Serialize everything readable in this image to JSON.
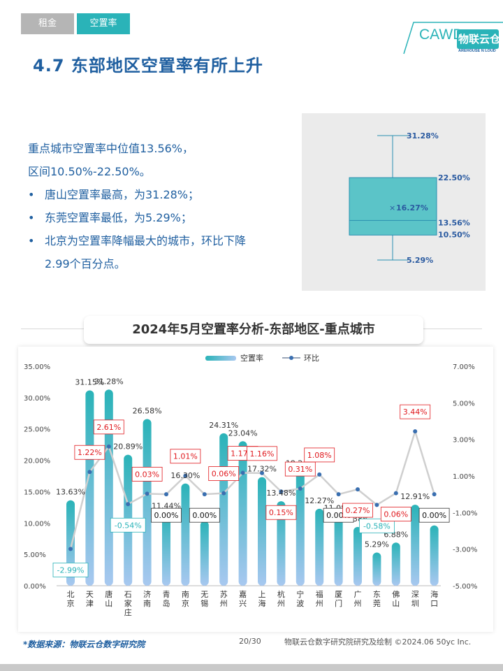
{
  "tabs": [
    "租金",
    "空置率"
  ],
  "logo": {
    "text": "CAWD",
    "brand": "物联云仓",
    "sub": "AREHOUSE N LOUD"
  },
  "page_title": "4.7 东部地区空置率有所上升",
  "summary": {
    "line1": "重点城市空置率中位值13.56%，",
    "line2": "区间10.50%-22.50%。",
    "bullets": [
      "唐山空置率最高，为31.28%；",
      "东莞空置率最低，为5.29%；",
      "北京为空置率降幅最大的城市，环比下降"
    ],
    "bullet3_cont": "2.99个百分点。"
  },
  "boxplot": {
    "max": 31.28,
    "q3": 22.5,
    "mean": 16.27,
    "median": 13.56,
    "q1": 10.5,
    "min": 5.29,
    "labels": {
      "max": "31.28%",
      "q3": "22.50%",
      "mean": "16.27%",
      "median": "13.56%",
      "q1": "10.50%",
      "min": "5.29%"
    }
  },
  "chart_title": "2024年5月空置率分析-东部地区-重点城市",
  "colors": {
    "teal": "#2ab3b8",
    "bar_light": "#a8c8f0",
    "line": "#cfcfcf",
    "dot": "#3a6fb0",
    "red": "#e0191e",
    "box": "#5bc4c8"
  },
  "chart_data": {
    "type": "bar",
    "categories": [
      "北京",
      "天津",
      "唐山",
      "石家庄",
      "济南",
      "青岛",
      "南京",
      "无锡",
      "苏州",
      "嘉兴",
      "上海",
      "杭州",
      "宁波",
      "福州",
      "厦门",
      "广州",
      "东莞",
      "佛山",
      "深圳",
      "海口"
    ],
    "series": [
      {
        "name": "空置率",
        "type": "bar",
        "axis": "left",
        "values": [
          13.63,
          31.15,
          31.28,
          20.89,
          26.58,
          11.44,
          16.3,
          10.3,
          24.31,
          23.04,
          17.32,
          13.48,
          18.24,
          12.27,
          11.08,
          9.38,
          5.29,
          6.88,
          12.91,
          9.61
        ],
        "labels": [
          "13.63%",
          "31.15%",
          "31.28%",
          "20.89%",
          "26.58%",
          "11.44%",
          "16.30%",
          "10.30%",
          "24.31%",
          "23.04%",
          "17.32%",
          "13.48%",
          "18.24%",
          "12.27%",
          "11.08%",
          "9.38%",
          "5.29%",
          "6.88%",
          "12.91%",
          "9.61%"
        ]
      },
      {
        "name": "环比",
        "type": "line",
        "axis": "right",
        "values": [
          -2.99,
          1.22,
          2.61,
          -0.54,
          0.03,
          0.0,
          1.01,
          0.0,
          0.06,
          1.17,
          1.16,
          0.15,
          0.31,
          1.08,
          0.0,
          0.27,
          -0.58,
          0.06,
          3.44,
          0.0
        ],
        "labels": [
          "-2.99%",
          "1.22%",
          "2.61%",
          "-0.54%",
          "0.03%",
          "0.00%",
          "1.01%",
          "0.00%",
          "0.06%",
          "1.17%",
          "1.16%",
          "0.15%",
          "0.31%",
          "1.08%",
          "0.00%",
          "0.27%",
          "-0.58%",
          "0.06%",
          "3.44%",
          "0.00%"
        ]
      }
    ],
    "ylim_left": [
      0,
      35
    ],
    "ylim_right": [
      -5,
      7
    ],
    "yticks_left": [
      "0.00%",
      "5.00%",
      "10.00%",
      "15.00%",
      "20.00%",
      "25.00%",
      "30.00%",
      "35.00%"
    ],
    "yticks_right": [
      "-5.00%",
      "-3.00%",
      "-1.00%",
      "1.00%",
      "3.00%",
      "5.00%",
      "7.00%"
    ],
    "legend": [
      "空置率",
      "环比"
    ],
    "legend_position": "top-center",
    "grid": false
  },
  "footer": {
    "source": "*数据来源：物联云仓数字研究院",
    "page": "20/30",
    "copyright": "物联云仓数字研究院研究及绘制 ©2024.06 50yc Inc."
  }
}
